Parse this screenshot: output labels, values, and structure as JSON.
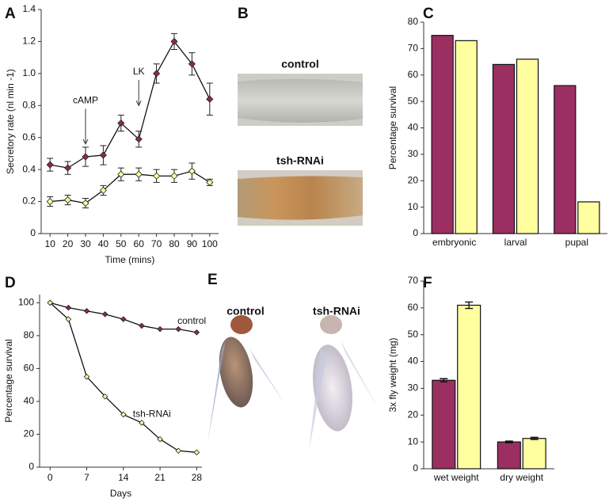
{
  "chart_data": [
    {
      "type": "line",
      "panel": "A",
      "ylabel": "Secretory rate (nl min -1)",
      "xlabel": "Time (mins)",
      "x": [
        10,
        20,
        30,
        40,
        50,
        60,
        70,
        80,
        90,
        100
      ],
      "xlim": [
        5,
        105
      ],
      "xticks": [
        10,
        20,
        30,
        40,
        50,
        60,
        70,
        80,
        90,
        100
      ],
      "ylim": [
        0,
        1.4
      ],
      "yticks": [
        0,
        0.2,
        0.4,
        0.6,
        0.8,
        {
          "value": 1,
          "label": "1.0"
        },
        1.2,
        1.4
      ],
      "annotations": [
        "cAMP",
        "LK"
      ],
      "series": [
        {
          "color": "#8b2a4e",
          "values": [
            0.43,
            0.41,
            0.48,
            0.49,
            0.69,
            0.59,
            1.0,
            1.2,
            1.06,
            0.84
          ],
          "errors": [
            0.04,
            0.04,
            0.06,
            0.06,
            0.05,
            0.05,
            0.06,
            0.05,
            0.07,
            0.1
          ]
        },
        {
          "color": "#ffff99",
          "values": [
            0.2,
            0.21,
            0.19,
            0.27,
            0.37,
            0.37,
            0.36,
            0.36,
            0.39,
            0.32
          ],
          "errors": [
            0.03,
            0.03,
            0.03,
            0.03,
            0.04,
            0.04,
            0.04,
            0.04,
            0.05,
            0.02
          ]
        }
      ]
    },
    {
      "type": "bar",
      "panel": "C",
      "ylabel": "Percentage survival",
      "categories": [
        "embryonic",
        "larval",
        "pupal"
      ],
      "ylim": [
        0,
        80
      ],
      "yticks": [
        0,
        10,
        20,
        30,
        40,
        50,
        60,
        70,
        80
      ],
      "series": [
        {
          "color": "#9b2f62",
          "values": [
            75,
            64,
            56
          ]
        },
        {
          "color": "#ffffa0",
          "values": [
            73,
            66,
            12
          ]
        }
      ]
    },
    {
      "type": "line",
      "panel": "D",
      "ylabel": "Percentage survival",
      "xlabel": "Days",
      "x": [
        0,
        3.5,
        7,
        10.5,
        14,
        17.5,
        21,
        24.5,
        28
      ],
      "xlim": [
        -2,
        29
      ],
      "xticks": [
        0,
        7,
        14,
        21,
        28
      ],
      "ylim": [
        0,
        105
      ],
      "yticks": [
        0,
        20,
        40,
        60,
        80,
        100
      ],
      "series": [
        {
          "name": "control",
          "color": "#8b2a4e",
          "values": [
            100,
            97,
            95,
            93,
            90,
            86,
            84,
            84,
            82
          ]
        },
        {
          "name": "tsh-RNAi",
          "color": "#ffff99",
          "values": [
            100,
            90,
            55,
            43,
            32,
            27,
            17,
            10,
            9
          ]
        }
      ]
    },
    {
      "type": "bar",
      "panel": "F",
      "ylabel": "3x fly weight (mg)",
      "categories": [
        "wet weight",
        "dry weight"
      ],
      "ylim": [
        0,
        70
      ],
      "yticks": [
        0,
        10,
        20,
        30,
        40,
        50,
        60,
        70
      ],
      "series": [
        {
          "color": "#9b2f62",
          "values": [
            33,
            10
          ],
          "errors": [
            0.6,
            0.3
          ]
        },
        {
          "color": "#ffffa0",
          "values": [
            61,
            11.3
          ],
          "errors": [
            1.2,
            0.4
          ]
        }
      ]
    }
  ],
  "images": [
    {
      "panel": "B",
      "captions": [
        "control",
        "tsh-RNAi"
      ]
    },
    {
      "panel": "E",
      "captions": [
        "control",
        "tsh-RNAi"
      ]
    }
  ]
}
